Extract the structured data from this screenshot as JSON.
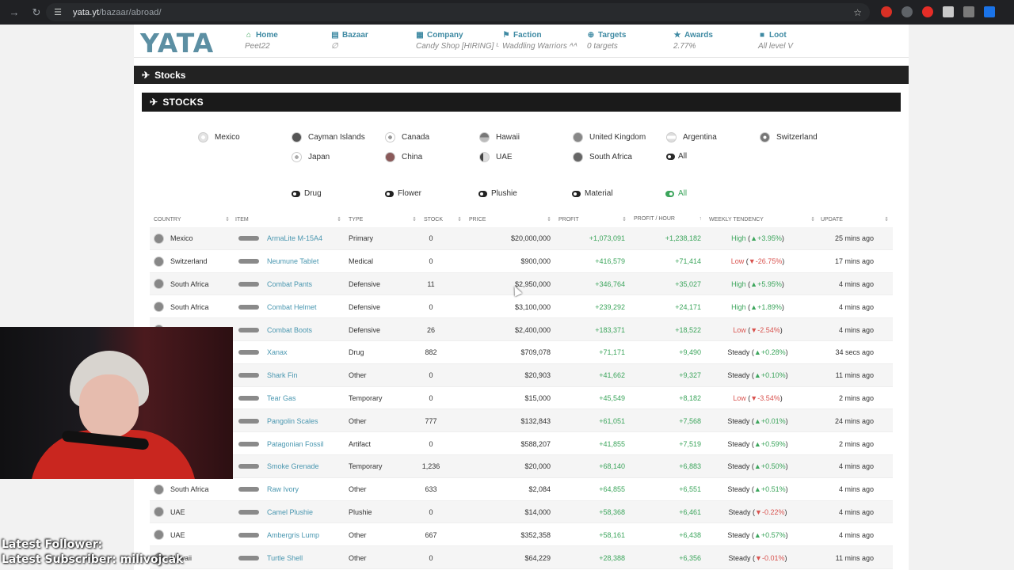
{
  "browser": {
    "url_host": "yata.yt",
    "url_path": "/bazaar/abroad/"
  },
  "logo_text": "YATA",
  "nav": [
    {
      "icon": "home-icon",
      "title": "Home",
      "sub": "Peet22"
    },
    {
      "icon": "bazaar-icon",
      "title": "Bazaar",
      "sub": "∅"
    },
    {
      "icon": "company-icon",
      "title": "Company",
      "sub": "Candy Shop [HIRING] ᴸ"
    },
    {
      "icon": "faction-icon",
      "title": "Faction",
      "sub": "Waddling Warriors ᴬᴬ"
    },
    {
      "icon": "targets-icon",
      "title": "Targets",
      "sub": "0 targets"
    },
    {
      "icon": "awards-icon",
      "title": "Awards",
      "sub": "2.77%"
    },
    {
      "icon": "loot-icon",
      "title": "Loot",
      "sub": "All level V"
    }
  ],
  "section_title": "Stocks",
  "panel_title": "STOCKS",
  "countries_row1": [
    "Mexico",
    "Cayman Islands",
    "Canada",
    "Hawaii",
    "United Kingdom",
    "Argentina",
    "Switzerland"
  ],
  "countries_row2": [
    "Japan",
    "China",
    "UAE",
    "South Africa",
    "All"
  ],
  "type_filters": [
    "Drug",
    "Flower",
    "Plushie",
    "Material",
    "All"
  ],
  "columns": [
    "Country",
    "Item",
    "Type",
    "Stock",
    "Price",
    "Profit",
    "Profit / Hour",
    "Weekly Tendency",
    "Update"
  ],
  "rows": [
    {
      "country": "Mexico",
      "item": "ArmaLite M-15A4",
      "type": "Primary",
      "stock": "0",
      "price": "$20,000,000",
      "profit": "+1,073,091",
      "pph": "+1,238,182",
      "trend": "High",
      "trend_pct": "+3.95%",
      "dir": "up",
      "update": "25 mins ago"
    },
    {
      "country": "Switzerland",
      "item": "Neumune Tablet",
      "type": "Medical",
      "stock": "0",
      "price": "$900,000",
      "profit": "+416,579",
      "pph": "+71,414",
      "trend": "Low",
      "trend_pct": "-26.75%",
      "dir": "down",
      "update": "17 mins ago"
    },
    {
      "country": "South Africa",
      "item": "Combat Pants",
      "type": "Defensive",
      "stock": "11",
      "price": "$2,950,000",
      "profit": "+346,764",
      "pph": "+35,027",
      "trend": "High",
      "trend_pct": "+5.95%",
      "dir": "up",
      "update": "4 mins ago"
    },
    {
      "country": "South Africa",
      "item": "Combat Helmet",
      "type": "Defensive",
      "stock": "0",
      "price": "$3,100,000",
      "profit": "+239,292",
      "pph": "+24,171",
      "trend": "High",
      "trend_pct": "+1.89%",
      "dir": "up",
      "update": "4 mins ago"
    },
    {
      "country": "",
      "item": "Combat Boots",
      "type": "Defensive",
      "stock": "26",
      "price": "$2,400,000",
      "profit": "+183,371",
      "pph": "+18,522",
      "trend": "Low",
      "trend_pct": "-2.54%",
      "dir": "down",
      "update": "4 mins ago"
    },
    {
      "country": "",
      "item": "Xanax",
      "type": "Drug",
      "stock": "882",
      "price": "$709,078",
      "profit": "+71,171",
      "pph": "+9,490",
      "trend": "Steady",
      "trend_pct": "+0.28%",
      "dir": "up",
      "update": "34 secs ago"
    },
    {
      "country": "",
      "item": "Shark Fin",
      "type": "Other",
      "stock": "0",
      "price": "$20,903",
      "profit": "+41,662",
      "pph": "+9,327",
      "trend": "Steady",
      "trend_pct": "+0.10%",
      "dir": "up",
      "update": "11 mins ago"
    },
    {
      "country": "",
      "item": "Tear Gas",
      "type": "Temporary",
      "stock": "0",
      "price": "$15,000",
      "profit": "+45,549",
      "pph": "+8,182",
      "trend": "Low",
      "trend_pct": "-3.54%",
      "dir": "down",
      "update": "2 mins ago"
    },
    {
      "country": "",
      "item": "Pangolin Scales",
      "type": "Other",
      "stock": "777",
      "price": "$132,843",
      "profit": "+61,051",
      "pph": "+7,568",
      "trend": "Steady",
      "trend_pct": "+0.01%",
      "dir": "up",
      "update": "24 mins ago"
    },
    {
      "country": "",
      "item": "Patagonian Fossil",
      "type": "Artifact",
      "stock": "0",
      "price": "$588,207",
      "profit": "+41,855",
      "pph": "+7,519",
      "trend": "Steady",
      "trend_pct": "+0.59%",
      "dir": "up",
      "update": "2 mins ago"
    },
    {
      "country": "",
      "item": "Smoke Grenade",
      "type": "Temporary",
      "stock": "1,236",
      "price": "$20,000",
      "profit": "+68,140",
      "pph": "+6,883",
      "trend": "Steady",
      "trend_pct": "+0.50%",
      "dir": "up",
      "update": "4 mins ago"
    },
    {
      "country": "South Africa",
      "item": "Raw Ivory",
      "type": "Other",
      "stock": "633",
      "price": "$2,084",
      "profit": "+64,855",
      "pph": "+6,551",
      "trend": "Steady",
      "trend_pct": "+0.51%",
      "dir": "up",
      "update": "4 mins ago"
    },
    {
      "country": "UAE",
      "item": "Camel Plushie",
      "type": "Plushie",
      "stock": "0",
      "price": "$14,000",
      "profit": "+58,368",
      "pph": "+6,461",
      "trend": "Steady",
      "trend_pct": "-0.22%",
      "dir": "down",
      "update": "4 mins ago"
    },
    {
      "country": "UAE",
      "item": "Ambergris Lump",
      "type": "Other",
      "stock": "667",
      "price": "$352,358",
      "profit": "+58,161",
      "pph": "+6,438",
      "trend": "Steady",
      "trend_pct": "+0.57%",
      "dir": "up",
      "update": "4 mins ago"
    },
    {
      "country": "Hawaii",
      "item": "Turtle Shell",
      "type": "Other",
      "stock": "0",
      "price": "$64,229",
      "profit": "+28,388",
      "pph": "+6,356",
      "trend": "Steady",
      "trend_pct": "-0.01%",
      "dir": "down",
      "update": "11 mins ago"
    }
  ],
  "overlay": {
    "follower_label": "Latest Follower:",
    "subscriber_label": "Latest Subscriber: milivojcak"
  },
  "colors": {
    "accent": "#3f8aa3",
    "positive": "#3ca55c",
    "negative": "#d9534f",
    "dark_bar": "#222222"
  }
}
